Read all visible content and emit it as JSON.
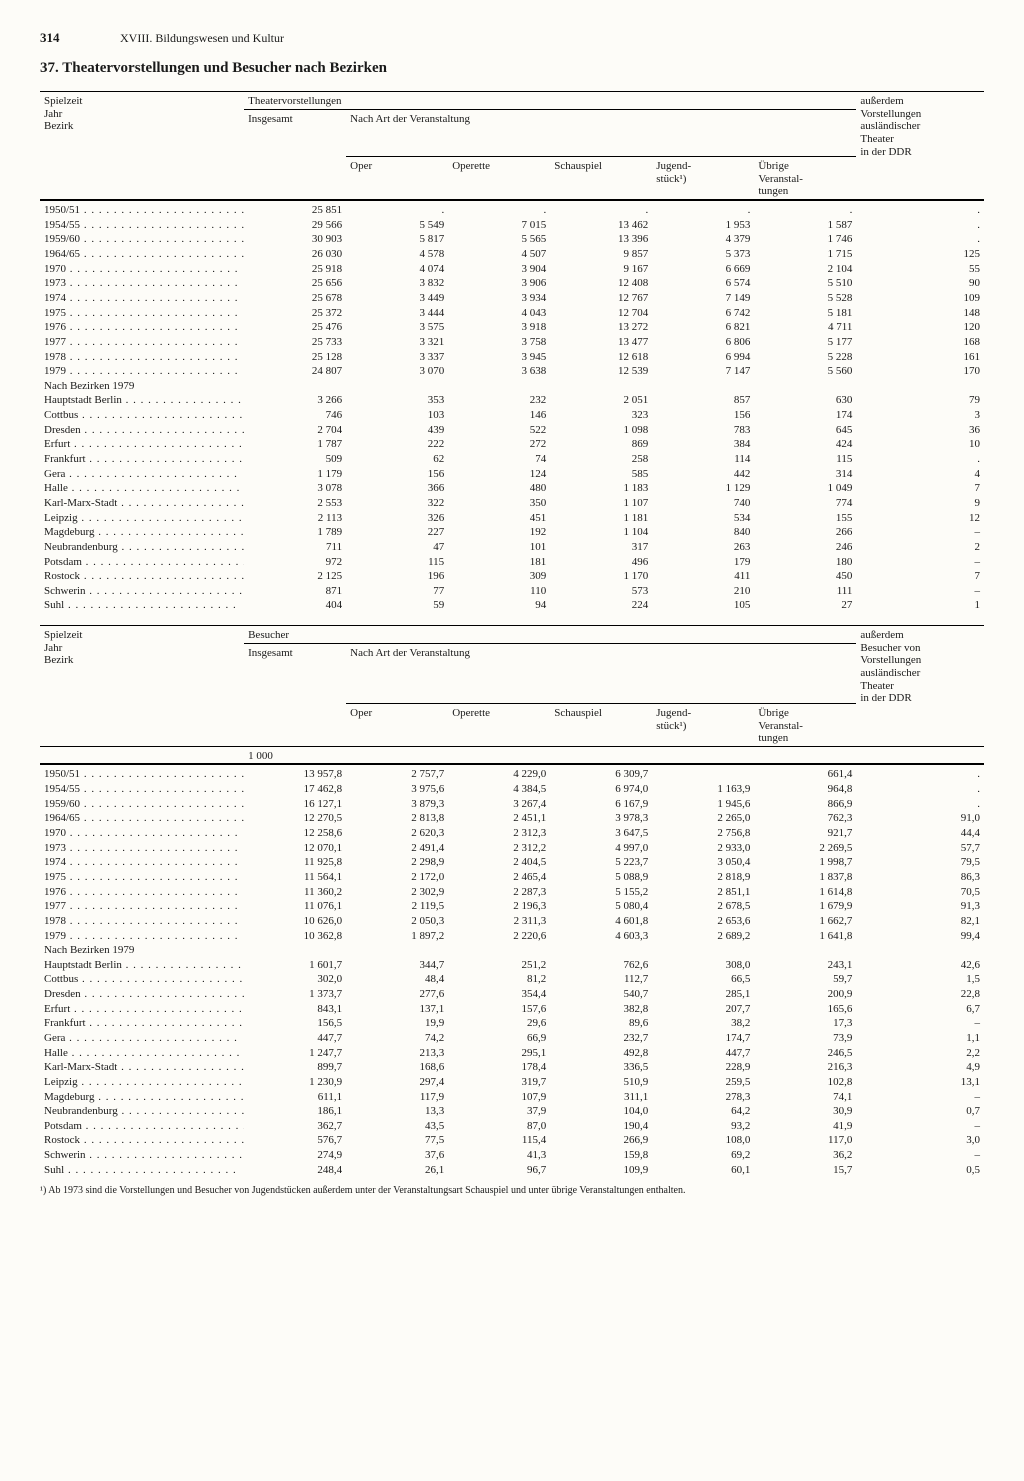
{
  "page_number": "314",
  "chapter": "XVIII. Bildungswesen und Kultur",
  "title": "37. Theatervorstellungen und Besucher nach Bezirken",
  "row_header_lines": [
    "Spielzeit",
    "Jahr",
    "Bezirk"
  ],
  "top": {
    "block_label": "Theatervorstellungen",
    "side_label": [
      "außerdem",
      "Vorstellungen",
      "ausländischer",
      "Theater",
      "in der DDR"
    ],
    "insgesamt": "Insgesamt",
    "nach_art": "Nach Art der Veranstaltung",
    "cols": [
      "Oper",
      "Operette",
      "Schauspiel",
      "Jugend-\nstück¹)",
      "Übrige\nVeranstal-\ntungen"
    ],
    "years": [
      {
        "l": "1950/51",
        "v": [
          "25 851",
          ".",
          ".",
          ".",
          ".",
          ".",
          "."
        ]
      },
      {
        "l": "1954/55",
        "v": [
          "29 566",
          "5 549",
          "7 015",
          "13 462",
          "1 953",
          "1 587",
          "."
        ]
      },
      {
        "l": "1959/60",
        "v": [
          "30 903",
          "5 817",
          "5 565",
          "13 396",
          "4 379",
          "1 746",
          "."
        ]
      },
      {
        "l": "1964/65",
        "v": [
          "26 030",
          "4 578",
          "4 507",
          "9 857",
          "5 373",
          "1 715",
          "125"
        ]
      },
      {
        "l": "1970",
        "v": [
          "25 918",
          "4 074",
          "3 904",
          "9 167",
          "6 669",
          "2 104",
          "55"
        ]
      },
      {
        "l": "1973",
        "v": [
          "25 656",
          "3 832",
          "3 906",
          "12 408",
          "6 574",
          "5 510",
          "90"
        ]
      },
      {
        "l": "1974",
        "v": [
          "25 678",
          "3 449",
          "3 934",
          "12 767",
          "7 149",
          "5 528",
          "109"
        ]
      },
      {
        "l": "1975",
        "v": [
          "25 372",
          "3 444",
          "4 043",
          "12 704",
          "6 742",
          "5 181",
          "148"
        ]
      },
      {
        "l": "1976",
        "v": [
          "25 476",
          "3 575",
          "3 918",
          "13 272",
          "6 821",
          "4 711",
          "120"
        ]
      },
      {
        "l": "1977",
        "v": [
          "25 733",
          "3 321",
          "3 758",
          "13 477",
          "6 806",
          "5 177",
          "168"
        ]
      },
      {
        "l": "1978",
        "v": [
          "25 128",
          "3 337",
          "3 945",
          "12 618",
          "6 994",
          "5 228",
          "161"
        ]
      },
      {
        "l": "1979",
        "v": [
          "24 807",
          "3 070",
          "3 638",
          "12 539",
          "7 147",
          "5 560",
          "170"
        ]
      }
    ],
    "bezirk_heading": "Nach Bezirken 1979",
    "bezirke": [
      {
        "l": "Hauptstadt Berlin",
        "v": [
          "3 266",
          "353",
          "232",
          "2 051",
          "857",
          "630",
          "79"
        ]
      },
      {
        "l": "Cottbus",
        "v": [
          "746",
          "103",
          "146",
          "323",
          "156",
          "174",
          "3"
        ]
      },
      {
        "l": "Dresden",
        "v": [
          "2 704",
          "439",
          "522",
          "1 098",
          "783",
          "645",
          "36"
        ]
      },
      {
        "l": "Erfurt",
        "v": [
          "1 787",
          "222",
          "272",
          "869",
          "384",
          "424",
          "10"
        ]
      },
      {
        "l": "Frankfurt",
        "v": [
          "509",
          "62",
          "74",
          "258",
          "114",
          "115",
          "."
        ]
      },
      {
        "l": "Gera",
        "v": [
          "1 179",
          "156",
          "124",
          "585",
          "442",
          "314",
          "4"
        ]
      },
      {
        "l": "Halle",
        "v": [
          "3 078",
          "366",
          "480",
          "1 183",
          "1 129",
          "1 049",
          "7"
        ]
      },
      {
        "l": "Karl-Marx-Stadt",
        "v": [
          "2 553",
          "322",
          "350",
          "1 107",
          "740",
          "774",
          "9"
        ]
      },
      {
        "l": "Leipzig",
        "v": [
          "2 113",
          "326",
          "451",
          "1 181",
          "534",
          "155",
          "12"
        ]
      },
      {
        "l": "Magdeburg",
        "v": [
          "1 789",
          "227",
          "192",
          "1 104",
          "840",
          "266",
          "–"
        ]
      },
      {
        "l": "Neubrandenburg",
        "v": [
          "711",
          "47",
          "101",
          "317",
          "263",
          "246",
          "2"
        ]
      },
      {
        "l": "Potsdam",
        "v": [
          "972",
          "115",
          "181",
          "496",
          "179",
          "180",
          "–"
        ]
      },
      {
        "l": "Rostock",
        "v": [
          "2 125",
          "196",
          "309",
          "1 170",
          "411",
          "450",
          "7"
        ]
      },
      {
        "l": "Schwerin",
        "v": [
          "871",
          "77",
          "110",
          "573",
          "210",
          "111",
          "–"
        ]
      },
      {
        "l": "Suhl",
        "v": [
          "404",
          "59",
          "94",
          "224",
          "105",
          "27",
          "1"
        ]
      }
    ]
  },
  "bottom": {
    "block_label": "Besucher",
    "side_label": [
      "außerdem",
      "Besucher von",
      "Vorstellungen",
      "ausländischer",
      "Theater",
      "in der DDR"
    ],
    "insgesamt": "Insgesamt",
    "nach_art": "Nach Art der Veranstaltung",
    "cols": [
      "Oper",
      "Operette",
      "Schauspiel",
      "Jugend-\nstück¹)",
      "Übrige\nVeranstal-\ntungen"
    ],
    "unit": "1 000",
    "years": [
      {
        "l": "1950/51",
        "v": [
          "13 957,8",
          "2 757,7",
          "4 229,0",
          "6 309,7",
          "",
          "661,4",
          "."
        ]
      },
      {
        "l": "1954/55",
        "v": [
          "17 462,8",
          "3 975,6",
          "4 384,5",
          "6 974,0",
          "1 163,9",
          "964,8",
          "."
        ]
      },
      {
        "l": "1959/60",
        "v": [
          "16 127,1",
          "3 879,3",
          "3 267,4",
          "6 167,9",
          "1 945,6",
          "866,9",
          "."
        ]
      },
      {
        "l": "1964/65",
        "v": [
          "12 270,5",
          "2 813,8",
          "2 451,1",
          "3 978,3",
          "2 265,0",
          "762,3",
          "91,0"
        ]
      },
      {
        "l": "1970",
        "v": [
          "12 258,6",
          "2 620,3",
          "2 312,3",
          "3 647,5",
          "2 756,8",
          "921,7",
          "44,4"
        ]
      },
      {
        "l": "1973",
        "v": [
          "12 070,1",
          "2 491,4",
          "2 312,2",
          "4 997,0",
          "2 933,0",
          "2 269,5",
          "57,7"
        ]
      },
      {
        "l": "1974",
        "v": [
          "11 925,8",
          "2 298,9",
          "2 404,5",
          "5 223,7",
          "3 050,4",
          "1 998,7",
          "79,5"
        ]
      },
      {
        "l": "1975",
        "v": [
          "11 564,1",
          "2 172,0",
          "2 465,4",
          "5 088,9",
          "2 818,9",
          "1 837,8",
          "86,3"
        ]
      },
      {
        "l": "1976",
        "v": [
          "11 360,2",
          "2 302,9",
          "2 287,3",
          "5 155,2",
          "2 851,1",
          "1 614,8",
          "70,5"
        ]
      },
      {
        "l": "1977",
        "v": [
          "11 076,1",
          "2 119,5",
          "2 196,3",
          "5 080,4",
          "2 678,5",
          "1 679,9",
          "91,3"
        ]
      },
      {
        "l": "1978",
        "v": [
          "10 626,0",
          "2 050,3",
          "2 311,3",
          "4 601,8",
          "2 653,6",
          "1 662,7",
          "82,1"
        ]
      },
      {
        "l": "1979",
        "v": [
          "10 362,8",
          "1 897,2",
          "2 220,6",
          "4 603,3",
          "2 689,2",
          "1 641,8",
          "99,4"
        ]
      }
    ],
    "bezirk_heading": "Nach Bezirken 1979",
    "bezirke": [
      {
        "l": "Hauptstadt Berlin",
        "v": [
          "1 601,7",
          "344,7",
          "251,2",
          "762,6",
          "308,0",
          "243,1",
          "42,6"
        ]
      },
      {
        "l": "Cottbus",
        "v": [
          "302,0",
          "48,4",
          "81,2",
          "112,7",
          "66,5",
          "59,7",
          "1,5"
        ]
      },
      {
        "l": "Dresden",
        "v": [
          "1 373,7",
          "277,6",
          "354,4",
          "540,7",
          "285,1",
          "200,9",
          "22,8"
        ]
      },
      {
        "l": "Erfurt",
        "v": [
          "843,1",
          "137,1",
          "157,6",
          "382,8",
          "207,7",
          "165,6",
          "6,7"
        ]
      },
      {
        "l": "Frankfurt",
        "v": [
          "156,5",
          "19,9",
          "29,6",
          "89,6",
          "38,2",
          "17,3",
          "–"
        ]
      },
      {
        "l": "Gera",
        "v": [
          "447,7",
          "74,2",
          "66,9",
          "232,7",
          "174,7",
          "73,9",
          "1,1"
        ]
      },
      {
        "l": "Halle",
        "v": [
          "1 247,7",
          "213,3",
          "295,1",
          "492,8",
          "447,7",
          "246,5",
          "2,2"
        ]
      },
      {
        "l": "Karl-Marx-Stadt",
        "v": [
          "899,7",
          "168,6",
          "178,4",
          "336,5",
          "228,9",
          "216,3",
          "4,9"
        ]
      },
      {
        "l": "Leipzig",
        "v": [
          "1 230,9",
          "297,4",
          "319,7",
          "510,9",
          "259,5",
          "102,8",
          "13,1"
        ]
      },
      {
        "l": "Magdeburg",
        "v": [
          "611,1",
          "117,9",
          "107,9",
          "311,1",
          "278,3",
          "74,1",
          "–"
        ]
      },
      {
        "l": "Neubrandenburg",
        "v": [
          "186,1",
          "13,3",
          "37,9",
          "104,0",
          "64,2",
          "30,9",
          "0,7"
        ]
      },
      {
        "l": "Potsdam",
        "v": [
          "362,7",
          "43,5",
          "87,0",
          "190,4",
          "93,2",
          "41,9",
          "–"
        ]
      },
      {
        "l": "Rostock",
        "v": [
          "576,7",
          "77,5",
          "115,4",
          "266,9",
          "108,0",
          "117,0",
          "3,0"
        ]
      },
      {
        "l": "Schwerin",
        "v": [
          "274,9",
          "37,6",
          "41,3",
          "159,8",
          "69,2",
          "36,2",
          "–"
        ]
      },
      {
        "l": "Suhl",
        "v": [
          "248,4",
          "26,1",
          "96,7",
          "109,9",
          "60,1",
          "15,7",
          "0,5"
        ]
      }
    ]
  },
  "footnote": "¹) Ab 1973 sind die Vorstellungen und Besucher von Jugendstücken außerdem unter der Veranstaltungsart Schauspiel und unter übrige Veranstaltungen enthalten."
}
